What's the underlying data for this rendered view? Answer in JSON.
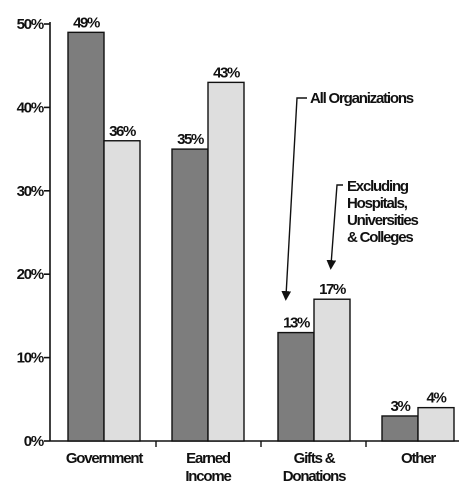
{
  "chart_data": {
    "type": "bar",
    "title": "",
    "xlabel": "",
    "ylabel": "",
    "ylim": [
      0,
      50
    ],
    "yticks": [
      "0%",
      "10%",
      "20%",
      "30%",
      "40%",
      "50%"
    ],
    "categories": [
      [
        "Government"
      ],
      [
        "Earned",
        "Income"
      ],
      [
        "Gifts &",
        "Donations"
      ],
      [
        "Other"
      ]
    ],
    "series": [
      {
        "name": "All Organizations",
        "values": [
          49,
          35,
          13,
          3
        ],
        "labels": [
          "49%",
          "35%",
          "13%",
          "3%"
        ],
        "color": "#7d7d7d"
      },
      {
        "name": "Excluding Hospitals, Universities & Colleges",
        "values": [
          36,
          43,
          17,
          4
        ],
        "labels": [
          "36%",
          "43%",
          "17%",
          "4%"
        ],
        "color": "#dedede"
      }
    ],
    "annotations": {
      "all_orgs": "All Organizations",
      "excluding": [
        "Excluding",
        "Hospitals,",
        "Universities",
        "& Colleges"
      ]
    },
    "grid": false
  }
}
